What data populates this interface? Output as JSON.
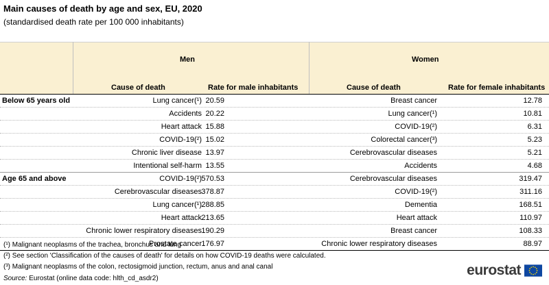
{
  "title": "Main causes of death by age and sex, EU, 2020",
  "subtitle": "(standardised death rate per 100 000 inhabitants)",
  "groups": {
    "men": "Men",
    "women": "Women"
  },
  "columns": {
    "men_cause": "Cause of death",
    "men_rate": "Rate for male inhabitants",
    "women_cause": "Cause of death",
    "women_rate": "Rate for female inhabitants"
  },
  "rows": [
    {
      "group": "Below 65 years old",
      "men_cause": "Lung cancer(¹)",
      "men_rate": "20.59",
      "women_cause": "Breast cancer",
      "women_rate": "12.78"
    },
    {
      "group": "",
      "men_cause": "Accidents",
      "men_rate": "20.22",
      "women_cause": "Lung cancer(¹)",
      "women_rate": "10.81"
    },
    {
      "group": "",
      "men_cause": "Heart attack",
      "men_rate": "15.88",
      "women_cause": "COVID-19(²)",
      "women_rate": "6.31"
    },
    {
      "group": "",
      "men_cause": "COVID-19(²)",
      "men_rate": "15.02",
      "women_cause": "Colorectal cancer(³)",
      "women_rate": "5.23"
    },
    {
      "group": "",
      "men_cause": "Chronic liver disease",
      "men_rate": "13.97",
      "women_cause": "Cerebrovascular diseases",
      "women_rate": "5.21"
    },
    {
      "group": "",
      "men_cause": "Intentional self-harm",
      "men_rate": "13.55",
      "women_cause": "Accidents",
      "women_rate": "4.68"
    },
    {
      "group": "Age 65 and above",
      "men_cause": "COVID-19(²)",
      "men_rate": "570.53",
      "women_cause": "Cerebrovascular diseases",
      "women_rate": "319.47"
    },
    {
      "group": "",
      "men_cause": "Cerebrovascular diseases",
      "men_rate": "378.87",
      "women_cause": "COVID-19(²)",
      "women_rate": "311.16"
    },
    {
      "group": "",
      "men_cause": "Lung cancer(¹)",
      "men_rate": "288.85",
      "women_cause": "Dementia",
      "women_rate": "168.51"
    },
    {
      "group": "",
      "men_cause": "Heart attack",
      "men_rate": "213.65",
      "women_cause": "Heart attack",
      "women_rate": "110.97"
    },
    {
      "group": "",
      "men_cause": "Chronic lower respiratory diseases",
      "men_rate": "190.29",
      "women_cause": "Breast cancer",
      "women_rate": "108.33"
    },
    {
      "group": "",
      "men_cause": "Prostate cancer",
      "men_rate": "176.97",
      "women_cause": "Chronic lower respiratory diseases",
      "women_rate": "88.97"
    }
  ],
  "footnotes": [
    "(¹) Malignant neoplasms of the trachea, bronchus and lung",
    "(²) See section 'Classification of the causes of death' for details on how COVID-19 deaths were calculated.",
    "(³) Malignant neoplasms of the colon, rectosigmoid junction, rectum, anus and anal canal"
  ],
  "source": {
    "label": "Source:",
    "text": " Eurostat (online data code: hlth_cd_asdr2)"
  },
  "logo": {
    "text": "eurostat",
    "icon": "eu-flag-icon"
  },
  "colors": {
    "header_band": "#faf0d2",
    "flag_blue": "#0e47a1",
    "flag_stars": "#ffdd00",
    "logo_text": "#3a3a3a"
  }
}
